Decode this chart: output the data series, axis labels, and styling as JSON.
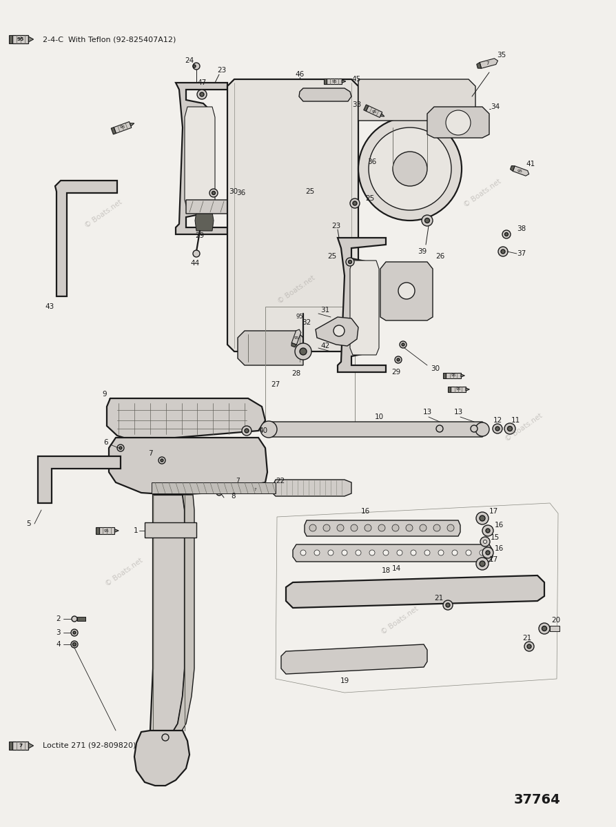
{
  "background_color": "#f2f0ec",
  "note_number": "37764",
  "legend1_num": "95",
  "legend1_text": "2-4-C  With Teflon (92-825407A12)",
  "legend2_num": "7",
  "legend2_text": "Loctite 271 (92-809820)",
  "watermark": "© Boats.net",
  "line_color": "#1a1a1a",
  "mid_gray": "#888880",
  "light_gray": "#d0ccc8",
  "dark_gray": "#606058"
}
